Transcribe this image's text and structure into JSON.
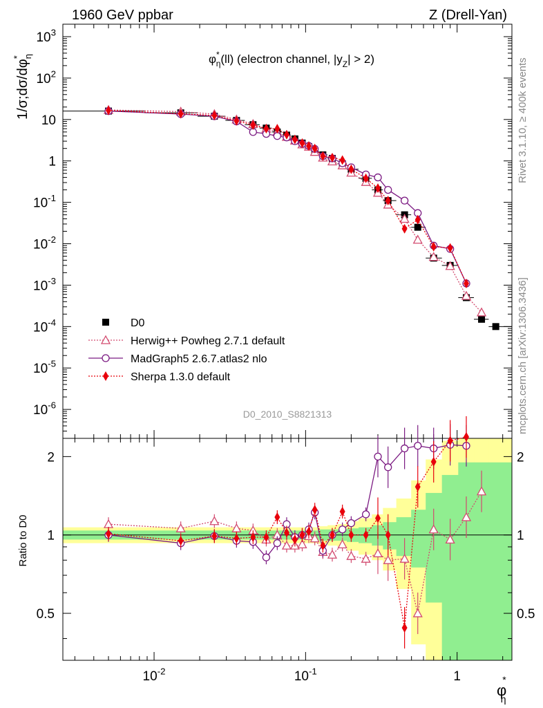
{
  "header": {
    "left": "1960 GeV ppbar",
    "right": "Z (Drell-Yan)"
  },
  "side": {
    "rivet": "Rivet 3.1.10, ≥ 400k events",
    "mcplots": "mcplots.cern.ch [arXiv:1306.3436]"
  },
  "chart_data": {
    "type": "scatter",
    "title": "φ∗η(ll) (electron channel, |yZ| > 2)",
    "title_parts": {
      "main": "φ",
      "sup": "*",
      "sub": "η",
      "rest1": "(ll) (electron channel, |y",
      "sub2": "Z",
      "rest2": "| > 2)"
    },
    "analysis_label": "D0_2010_S8821313",
    "x_scale": "log",
    "xlim": [
      0.0025,
      2.3
    ],
    "xlabel": {
      "main": "φ",
      "sup": "*",
      "sub": "η"
    },
    "upper": {
      "y_scale": "log",
      "ylim": [
        2e-07,
        2000
      ],
      "ylabel": {
        "text": "1/σ;dσ/dφ",
        "sup": "*",
        "sub": "η"
      },
      "yticks": [
        {
          "v": 1000,
          "label": "10^3"
        },
        {
          "v": 100,
          "label": "10^2"
        },
        {
          "v": 10,
          "label": "10"
        },
        {
          "v": 1,
          "label": "1"
        },
        {
          "v": 0.1,
          "label": "10^-1"
        },
        {
          "v": 0.01,
          "label": "10^-2"
        },
        {
          "v": 0.001,
          "label": "10^-3"
        },
        {
          "v": 0.0001,
          "label": "10^-4"
        },
        {
          "v": 1e-05,
          "label": "10^-5"
        },
        {
          "v": 1e-06,
          "label": "10^-6"
        }
      ]
    },
    "ratio": {
      "ylabel": "Ratio to D0",
      "ylim": [
        0.33,
        2.35
      ],
      "yticks": [
        {
          "v": 2,
          "label": "2"
        },
        {
          "v": 1,
          "label": "1"
        },
        {
          "v": 0.5,
          "label": "0.5"
        }
      ]
    },
    "xticks": [
      {
        "v": 0.01,
        "label": "10^-2"
      },
      {
        "v": 0.1,
        "label": "10^-1"
      },
      {
        "v": 1,
        "label": "1"
      }
    ],
    "x": [
      0.005,
      0.015,
      0.025,
      0.035,
      0.045,
      0.055,
      0.065,
      0.075,
      0.085,
      0.095,
      0.105,
      0.115,
      0.13,
      0.15,
      0.175,
      0.2,
      0.25,
      0.3,
      0.35,
      0.45,
      0.55,
      0.7,
      0.9,
      1.15,
      1.45,
      1.8
    ],
    "series": [
      {
        "name": "D0",
        "style": "data",
        "color": "#000000",
        "values": [
          16,
          14.5,
          12,
          9.5,
          7.5,
          6.2,
          5.0,
          4.2,
          3.4,
          2.7,
          2.2,
          1.7,
          1.4,
          1.15,
          0.85,
          0.63,
          0.38,
          0.2,
          0.11,
          0.05,
          0.025,
          0.0045,
          0.003,
          0.0005,
          0.00015,
          0.0001
        ]
      },
      {
        "name": "Herwig++ Powheg 2.7.1 default",
        "style": "herwig",
        "color": "#d24a6f",
        "values": [
          17,
          15.5,
          13.5,
          10.0,
          7.8,
          6.0,
          5.0,
          3.8,
          3.1,
          2.5,
          2.2,
          1.65,
          1.2,
          0.97,
          0.78,
          0.52,
          0.31,
          0.17,
          0.088,
          0.04,
          0.0125,
          0.0048,
          0.0029,
          0.00055,
          0.00022
        ],
        "ratio": [
          1.1,
          1.06,
          1.13,
          1.06,
          1.04,
          0.96,
          1.0,
          0.91,
          0.91,
          0.92,
          0.99,
          0.97,
          0.86,
          0.84,
          0.92,
          0.83,
          0.81,
          0.85,
          0.8,
          0.81,
          0.5,
          1.05,
          0.96,
          1.17,
          1.47
        ]
      },
      {
        "name": "MadGraph5 2.6.7.atlas2 nlo",
        "style": "madgraph",
        "color": "#7b1a82",
        "values": [
          16,
          13.5,
          12,
          9.0,
          5.0,
          4.5,
          4.0,
          3.7,
          3.0,
          2.6,
          2.3,
          1.95,
          1.3,
          1.15,
          0.88,
          0.7,
          0.47,
          0.4,
          0.2,
          0.11,
          0.055,
          0.009,
          0.0075,
          0.0011
        ],
        "ratio": [
          1.0,
          0.93,
          0.99,
          0.95,
          0.94,
          0.82,
          0.93,
          1.1,
          0.98,
          1.0,
          1.05,
          1.22,
          0.87,
          1.0,
          1.05,
          1.11,
          1.2,
          2.0,
          1.82,
          2.15,
          2.2,
          2.15,
          2.22,
          2.2
        ]
      },
      {
        "name": "Sherpa 1.3.0 default",
        "style": "sherpa",
        "color": "#e8000b",
        "values": [
          16.5,
          13.8,
          12.5,
          9.3,
          7.3,
          6.0,
          6.0,
          4.3,
          3.3,
          2.7,
          2.3,
          2.0,
          1.3,
          1.2,
          1.05,
          0.63,
          0.38,
          0.22,
          0.11,
          0.023,
          0.038,
          0.0085,
          0.0079,
          0.0011
        ],
        "ratio": [
          1.01,
          0.95,
          0.99,
          0.97,
          0.98,
          0.98,
          1.17,
          1.02,
          0.96,
          1.0,
          1.03,
          1.25,
          0.91,
          1.0,
          1.23,
          1.0,
          1.0,
          1.16,
          1.0,
          0.44,
          1.53,
          1.91,
          2.3,
          2.38
        ]
      }
    ],
    "ratio_band_green": [
      0.04,
      0.04,
      0.04,
      0.04,
      0.04,
      0.04,
      0.04,
      0.04,
      0.04,
      0.04,
      0.04,
      0.04,
      0.05,
      0.05,
      0.05,
      0.06,
      0.07,
      0.09,
      0.12,
      0.17,
      0.25,
      0.45,
      0.7,
      0.9,
      0.9,
      0.9
    ],
    "ratio_band_yellow": [
      0.07,
      0.07,
      0.07,
      0.07,
      0.07,
      0.07,
      0.07,
      0.07,
      0.07,
      0.07,
      0.07,
      0.07,
      0.08,
      0.09,
      0.1,
      0.13,
      0.16,
      0.2,
      0.27,
      0.38,
      0.62,
      0.95,
      1.3,
      1.6,
      1.6,
      1.6
    ]
  }
}
